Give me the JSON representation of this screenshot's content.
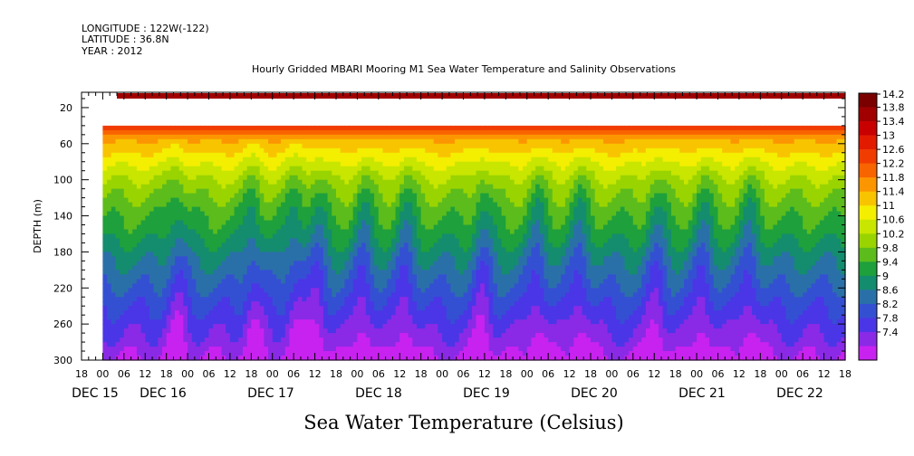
{
  "header": {
    "longitude": "LONGITUDE : 122W(-122)",
    "latitude": "LATITUDE : 36.8N",
    "year": "YEAR : 2012"
  },
  "chart_data": {
    "type": "heatmap",
    "title": "Hourly Gridded MBARI Mooring M1 Sea Water Temperature and Salinity Observations",
    "xlabel": "Sea Water Temperature (Celsius)",
    "ylabel": "DEPTH (m)",
    "y_ticks": [
      20,
      60,
      100,
      140,
      180,
      220,
      260,
      300
    ],
    "ylim": [
      300,
      0
    ],
    "x_hour_ticks": [
      "18",
      "00",
      "06",
      "12",
      "18",
      "00",
      "06",
      "12",
      "18",
      "00",
      "06",
      "12",
      "18",
      "00",
      "06",
      "12",
      "18",
      "00",
      "06",
      "12",
      "18",
      "00",
      "06",
      "12",
      "18",
      "00",
      "06",
      "12",
      "18",
      "00",
      "06",
      "12",
      "18",
      "00",
      "06",
      "12",
      "18"
    ],
    "x_day_labels": [
      "DEC 15",
      "DEC 16",
      "DEC 17",
      "DEC 18",
      "DEC 19",
      "DEC 20",
      "DEC 21",
      "DEC 22"
    ],
    "colorbar_levels": [
      "14.2",
      "13.8",
      "13.4",
      "13",
      "12.6",
      "12.2",
      "11.8",
      "11.4",
      "11",
      "10.6",
      "10.2",
      "9.8",
      "9.4",
      "9",
      "8.6",
      "8.2",
      "7.8",
      "7.4"
    ],
    "colorbar_colors": [
      "#7a0000",
      "#a00000",
      "#c80000",
      "#e21a00",
      "#f03c00",
      "#f86400",
      "#fc9600",
      "#f8c400",
      "#f4ee00",
      "#c8e600",
      "#9ad400",
      "#5cbc1c",
      "#1ea03c",
      "#148c6e",
      "#2a70a8",
      "#3450d2",
      "#4a36e6",
      "#8a2ae6",
      "#c822f0"
    ],
    "colorbar_range": [
      7.4,
      14.2
    ],
    "surface_layer": {
      "depth_range_m": [
        0,
        10
      ],
      "temperature_c": 13.7
    },
    "no_data_band_m": [
      10,
      40
    ],
    "time_range_days": [
      0,
      8
    ],
    "profile": [
      {
        "depth": 40,
        "temp": 12.9
      },
      {
        "depth": 50,
        "temp": 12.0
      },
      {
        "depth": 60,
        "temp": 11.6
      },
      {
        "depth": 80,
        "temp": 11.1
      },
      {
        "depth": 100,
        "temp": 10.6
      },
      {
        "depth": 130,
        "temp": 10.1
      },
      {
        "depth": 160,
        "temp": 9.7
      },
      {
        "depth": 190,
        "temp": 9.2
      },
      {
        "depth": 220,
        "temp": 8.8
      },
      {
        "depth": 250,
        "temp": 8.4
      },
      {
        "depth": 280,
        "temp": 8.0
      },
      {
        "depth": 300,
        "temp": 7.7
      }
    ],
    "upwelling_events_day": [
      0.85,
      1.75,
      2.25,
      2.5,
      3.05,
      3.55,
      4.45,
      5.1,
      5.6,
      6.5,
      7.05,
      7.6
    ]
  }
}
